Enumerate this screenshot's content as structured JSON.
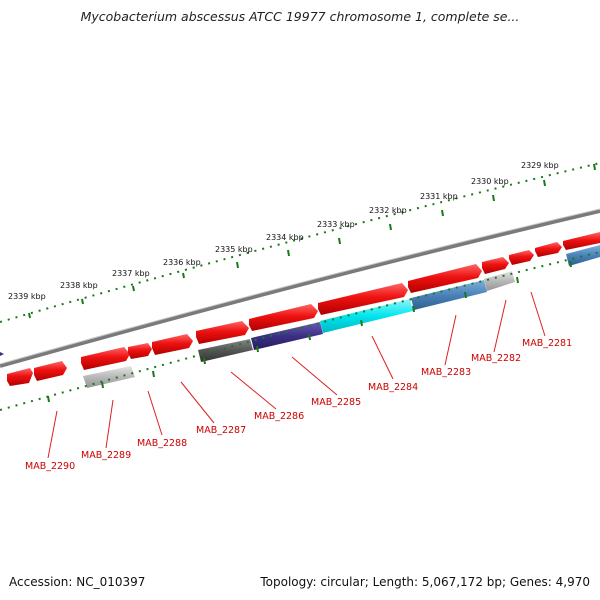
{
  "title": "Mycobacterium abscessus ATCC 19977 chromosome 1, complete se...",
  "footer": {
    "accession": "Accession: NC_010397",
    "summary": "Topology: circular; Length: 5,067,172 bp; Genes: 4,970"
  },
  "colors": {
    "backbone": "#7a7a7a",
    "tick": "#1a7a1a",
    "gene_label": "#cc0000",
    "cds_forward": "#ee1111",
    "cds_reverse_cyan": "#00e5ee",
    "cds_reverse_steel": "#4a82b8",
    "cds_reverse_purple": "#3c2f86",
    "cds_reverse_darkgray": "#555555",
    "cds_reverse_lightgray": "#b8b8b8"
  },
  "kbp_labels": [
    "2339 kbp",
    "2338 kbp",
    "2337 kbp",
    "2336 kbp",
    "2335 kbp",
    "2334 kbp",
    "2333 kbp",
    "2332 kbp",
    "2331 kbp",
    "2330 kbp",
    "2329 kbp"
  ],
  "gene_labels": [
    "MAB_2290",
    "MAB_2289",
    "MAB_2288",
    "MAB_2287",
    "MAB_2286",
    "MAB_2285",
    "MAB_2284",
    "MAB_2283",
    "MAB_2282",
    "MAB_2281"
  ]
}
